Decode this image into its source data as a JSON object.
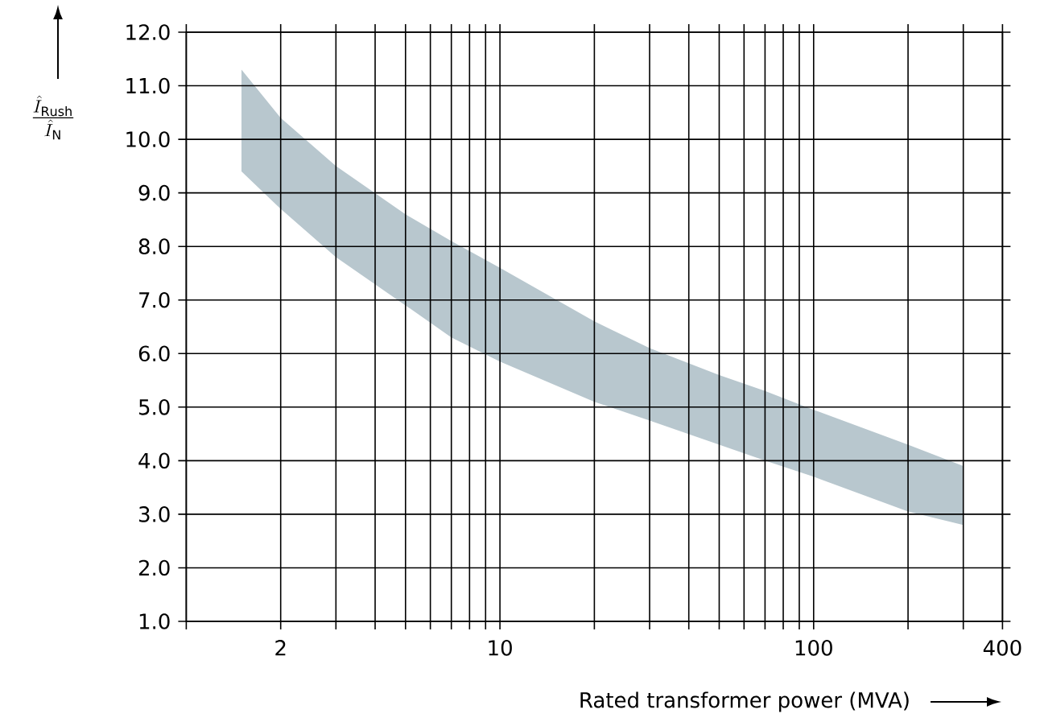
{
  "chart_data": {
    "type": "area",
    "xlabel": "Rated transformer power (MVA)",
    "ylabel": "\\frac{\\hat{I}_{\\mathrm{Rush}}}{\\hat{I}_{\\mathrm{N}}}",
    "log": "x",
    "grid": true,
    "xlim": [
      1,
      400
    ],
    "ylim": [
      1,
      12
    ],
    "xticks": [
      {
        "value": 1,
        "label": null
      },
      2,
      {
        "value": 3,
        "label": null
      },
      {
        "value": 4,
        "label": null
      },
      {
        "value": 5,
        "label": null
      },
      {
        "value": 6,
        "label": null
      },
      {
        "value": 7,
        "label": null
      },
      {
        "value": 8,
        "label": null
      },
      {
        "value": 9,
        "label": null
      },
      10,
      {
        "value": 20,
        "label": null
      },
      {
        "value": 30,
        "label": null
      },
      {
        "value": 40,
        "label": null
      },
      {
        "value": 50,
        "label": null
      },
      {
        "value": 60,
        "label": null
      },
      {
        "value": 70,
        "label": null
      },
      {
        "value": 80,
        "label": null
      },
      {
        "value": 90,
        "label": null
      },
      100,
      {
        "value": 200,
        "label": null
      },
      {
        "value": 300,
        "label": null
      },
      400
    ],
    "yticks": [
      {
        "value": 1,
        "label": "1.0"
      },
      {
        "value": 2,
        "label": "2.0"
      },
      {
        "value": 3,
        "label": "3.0"
      },
      {
        "value": 4,
        "label": "4.0"
      },
      {
        "value": 5,
        "label": "5.0"
      },
      {
        "value": 6,
        "label": "6.0"
      },
      {
        "value": 7,
        "label": "7.0"
      },
      {
        "value": 8,
        "label": "8.0"
      },
      {
        "value": 9,
        "label": "9.0"
      },
      {
        "value": 10,
        "label": "10.0"
      },
      {
        "value": 11,
        "label": "11.0"
      },
      {
        "value": 12,
        "label": "12.0"
      }
    ],
    "series": [
      {
        "color": "#b8c7ce",
        "x": [
          1.5,
          2,
          3,
          5,
          7,
          10,
          20,
          30,
          50,
          70,
          100,
          200,
          300
        ],
        "values": [
          11.3,
          10.4,
          9.5,
          8.6,
          8.1,
          7.6,
          6.6,
          6.1,
          5.6,
          5.3,
          4.95,
          4.3,
          3.9
        ]
      },
      {
        "color": "#ffffff",
        "x": [
          1.5,
          2,
          3,
          5,
          7,
          10,
          20,
          30,
          50,
          70,
          100,
          200,
          300
        ],
        "values": [
          9.4,
          8.7,
          7.8,
          6.9,
          6.3,
          5.85,
          5.1,
          4.75,
          4.3,
          4.0,
          3.7,
          3.05,
          2.8
        ]
      }
    ]
  }
}
